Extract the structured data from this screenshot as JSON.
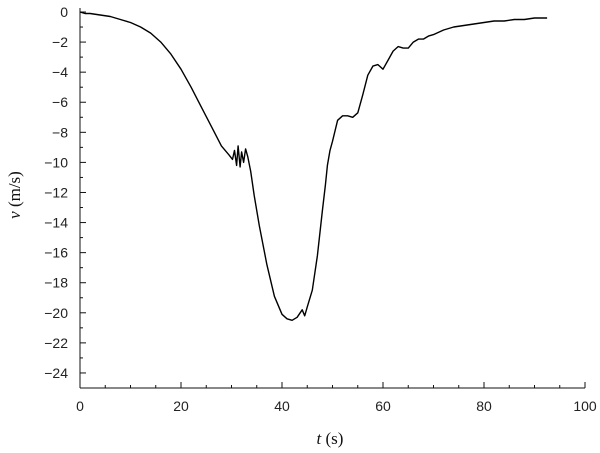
{
  "chart_data": {
    "type": "line",
    "title": "",
    "xlabel": {
      "symbol": "t",
      "unit": " (s)"
    },
    "ylabel": {
      "symbol": "v",
      "unit": " (m/s)"
    },
    "xlim": [
      0,
      100
    ],
    "ylim": [
      -25,
      0
    ],
    "grid": false,
    "legend": "none",
    "x_major_ticks": [
      0,
      20,
      40,
      60,
      80,
      100
    ],
    "y_major_ticks": [
      0,
      -2,
      -4,
      -6,
      -8,
      -10,
      -12,
      -14,
      -16,
      -18,
      -20,
      -22,
      -24
    ],
    "line_color": "#000000",
    "series": [
      {
        "x": [
          0,
          1,
          2,
          4,
          6,
          8,
          10,
          12,
          14,
          16,
          18,
          20,
          22,
          24,
          26,
          28,
          29.5,
          30.2,
          30.6,
          31,
          31.3,
          31.7,
          32,
          32.4,
          32.8,
          33.2,
          33.8,
          34.5,
          35.5,
          37,
          38.5,
          40,
          41,
          42,
          43,
          44,
          44.5,
          45,
          46,
          47,
          48,
          48.6,
          49,
          49.5,
          50,
          51,
          52,
          53,
          54,
          55,
          56,
          57,
          58,
          59,
          60,
          61,
          62,
          63,
          64,
          65,
          66,
          67,
          68,
          69,
          70,
          72,
          74,
          76,
          78,
          80,
          82,
          84,
          86,
          88,
          90,
          92.5
        ],
        "y": [
          0,
          -0.1,
          -0.1,
          -0.2,
          -0.3,
          -0.5,
          -0.7,
          -1.0,
          -1.4,
          -2.0,
          -2.8,
          -3.8,
          -5.0,
          -6.3,
          -7.6,
          -8.9,
          -9.5,
          -9.8,
          -9.2,
          -10.2,
          -8.9,
          -10.3,
          -9.3,
          -10.0,
          -9.1,
          -9.6,
          -10.6,
          -12.2,
          -14.2,
          -16.8,
          -18.9,
          -20.1,
          -20.4,
          -20.5,
          -20.3,
          -19.8,
          -20.2,
          -19.6,
          -18.5,
          -16.2,
          -13.2,
          -11.5,
          -10.2,
          -9.2,
          -8.6,
          -7.2,
          -6.9,
          -6.9,
          -7.0,
          -6.7,
          -5.5,
          -4.2,
          -3.6,
          -3.5,
          -3.8,
          -3.2,
          -2.6,
          -2.3,
          -2.4,
          -2.4,
          -2.0,
          -1.8,
          -1.8,
          -1.6,
          -1.5,
          -1.2,
          -1.0,
          -0.9,
          -0.8,
          -0.7,
          -0.6,
          -0.6,
          -0.5,
          -0.5,
          -0.4,
          -0.4
        ]
      }
    ]
  }
}
